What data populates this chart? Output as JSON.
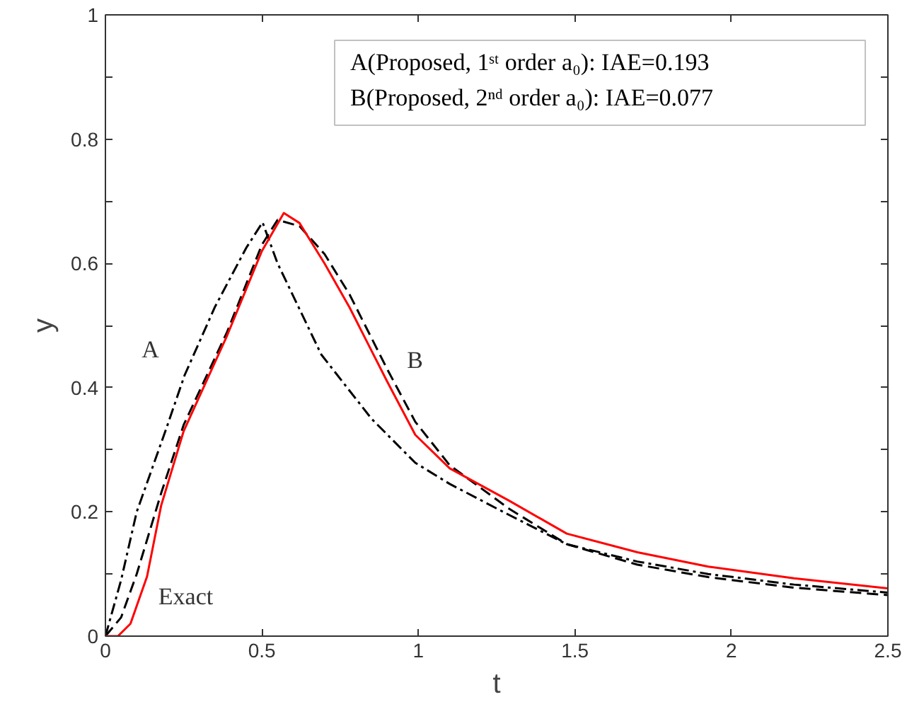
{
  "chart_data": {
    "type": "line",
    "xlabel": "t",
    "ylabel": "y",
    "xlim": [
      0,
      2.5
    ],
    "xticks": [
      0,
      0.5,
      1,
      1.5,
      2,
      2.5
    ],
    "ylim": [
      0,
      1
    ],
    "yticks": [
      0,
      {
        "value": 0.1,
        "label": null
      },
      0.2,
      {
        "value": 0.3,
        "label": null
      },
      0.4,
      {
        "value": 0.5,
        "label": null
      },
      0.6,
      {
        "value": 0.7,
        "label": null
      },
      0.8,
      {
        "value": 0.9,
        "label": null
      },
      1
    ],
    "grid": false,
    "legend": false,
    "series": [
      {
        "name": "A",
        "color": "#000000",
        "line_style": "dashdot",
        "x": [
          0,
          0.05,
          0.1,
          0.193,
          0.253,
          0.35,
          0.45,
          0.502,
          0.55,
          0.69,
          0.85,
          0.99,
          1.1,
          1.29,
          1.474,
          1.7,
          1.926,
          2.2,
          2.5
        ],
        "values": [
          0,
          0.09,
          0.2,
          0.332,
          0.42,
          0.53,
          0.625,
          0.666,
          0.6,
          0.453,
          0.35,
          0.279,
          0.245,
          0.195,
          0.148,
          0.12,
          0.1,
          0.083,
          0.07
        ]
      },
      {
        "name": "B",
        "color": "#000000",
        "line_style": "dashed",
        "x": [
          0,
          0.05,
          0.1,
          0.178,
          0.25,
          0.389,
          0.5,
          0.55,
          0.62,
          0.7,
          0.78,
          0.9,
          0.99,
          1.1,
          1.29,
          1.474,
          1.7,
          1.926,
          2.2,
          2.5
        ],
        "values": [
          0,
          0.03,
          0.1,
          0.23,
          0.34,
          0.49,
          0.63,
          0.67,
          0.66,
          0.615,
          0.55,
          0.43,
          0.345,
          0.275,
          0.205,
          0.148,
          0.115,
          0.095,
          0.078,
          0.066
        ]
      },
      {
        "name": "Exact",
        "color": "#ff0000",
        "line_style": "solid",
        "x": [
          0,
          0.04,
          0.08,
          0.133,
          0.178,
          0.25,
          0.389,
          0.5,
          0.57,
          0.62,
          0.7,
          0.78,
          0.9,
          0.99,
          1.1,
          1.29,
          1.474,
          1.7,
          1.926,
          2.2,
          2.5
        ],
        "values": [
          0,
          0,
          0.02,
          0.096,
          0.21,
          0.33,
          0.484,
          0.62,
          0.681,
          0.665,
          0.6,
          0.529,
          0.41,
          0.324,
          0.27,
          0.218,
          0.165,
          0.135,
          0.112,
          0.093,
          0.077
        ]
      }
    ],
    "annotations": [
      "A(Proposed, 1ˢᵗ order a₀): IAE=0.193",
      "B(Proposed, 2ⁿᵈ order a₀): IAE=0.077"
    ]
  }
}
